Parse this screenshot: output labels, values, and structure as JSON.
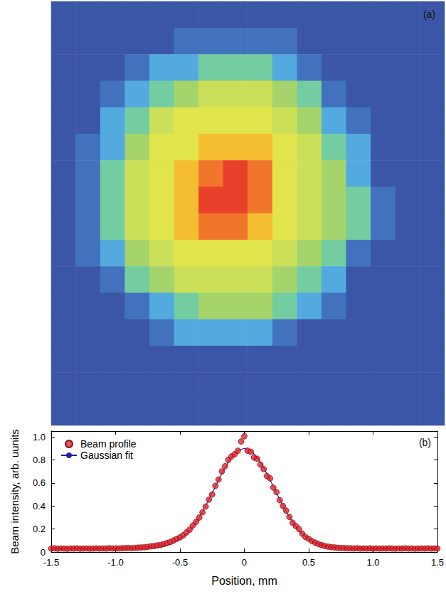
{
  "chart_data": [
    {
      "type": "heatmap",
      "title": "(a)",
      "tick_labels": false,
      "zlim": [
        0,
        1
      ],
      "cells": [
        [
          0,
          0,
          0,
          0,
          0,
          0,
          0,
          0,
          0,
          0,
          0,
          0,
          0,
          0,
          0,
          0
        ],
        [
          0,
          0,
          0,
          0,
          0,
          0.07,
          0.07,
          0.07,
          0.07,
          0.07,
          0,
          0,
          0,
          0,
          0,
          0
        ],
        [
          0,
          0,
          0,
          0.07,
          0.2,
          0.2,
          0.38,
          0.38,
          0.38,
          0.2,
          0.07,
          0,
          0,
          0,
          0,
          0
        ],
        [
          0,
          0,
          0.07,
          0.2,
          0.38,
          0.5,
          0.58,
          0.58,
          0.58,
          0.5,
          0.38,
          0.07,
          0,
          0,
          0,
          0
        ],
        [
          0,
          0,
          0.2,
          0.38,
          0.58,
          0.65,
          0.65,
          0.65,
          0.65,
          0.58,
          0.5,
          0.2,
          0.07,
          0,
          0,
          0
        ],
        [
          0,
          0.07,
          0.2,
          0.5,
          0.65,
          0.65,
          0.8,
          0.8,
          0.8,
          0.65,
          0.58,
          0.38,
          0.2,
          0,
          0,
          0
        ],
        [
          0,
          0.07,
          0.38,
          0.58,
          0.65,
          0.8,
          0.92,
          1.0,
          0.92,
          0.65,
          0.58,
          0.5,
          0.2,
          0,
          0,
          0
        ],
        [
          0,
          0.07,
          0.38,
          0.58,
          0.65,
          0.8,
          1.0,
          1.0,
          0.92,
          0.65,
          0.58,
          0.5,
          0.38,
          0.07,
          0,
          0
        ],
        [
          0,
          0.07,
          0.38,
          0.58,
          0.65,
          0.8,
          0.92,
          0.92,
          0.8,
          0.65,
          0.58,
          0.5,
          0.38,
          0.07,
          0,
          0
        ],
        [
          0,
          0.07,
          0.2,
          0.5,
          0.58,
          0.65,
          0.65,
          0.65,
          0.65,
          0.58,
          0.5,
          0.38,
          0.07,
          0,
          0,
          0
        ],
        [
          0,
          0,
          0.07,
          0.38,
          0.5,
          0.58,
          0.58,
          0.58,
          0.58,
          0.5,
          0.38,
          0.2,
          0,
          0,
          0,
          0
        ],
        [
          0,
          0,
          0,
          0.07,
          0.2,
          0.38,
          0.5,
          0.5,
          0.5,
          0.38,
          0.2,
          0.07,
          0,
          0,
          0,
          0
        ],
        [
          0,
          0,
          0,
          0,
          0.07,
          0.2,
          0.2,
          0.2,
          0.2,
          0.07,
          0,
          0,
          0,
          0,
          0,
          0
        ],
        [
          0,
          0,
          0,
          0,
          0,
          0,
          0,
          0,
          0,
          0,
          0,
          0,
          0,
          0,
          0,
          0
        ],
        [
          0,
          0,
          0,
          0,
          0,
          0,
          0,
          0,
          0,
          0,
          0,
          0,
          0,
          0,
          0,
          0
        ],
        [
          0,
          0,
          0,
          0,
          0,
          0,
          0,
          0,
          0,
          0,
          0,
          0,
          0,
          0,
          0,
          0
        ]
      ]
    },
    {
      "type": "scatter",
      "title": "(b)",
      "xlabel": "Position, mm",
      "ylabel": "Beam intensity, arb. uunits",
      "xlim": [
        -1.5,
        1.5
      ],
      "xticks": [
        -1.5,
        {
          "value": -1.0,
          "label": "-1.0"
        },
        -0.5,
        0,
        0.5,
        {
          "value": 1.0,
          "label": "1.0"
        },
        1.5
      ],
      "ylim": [
        0,
        1.05
      ],
      "yticks": [
        0,
        0.2,
        0.4,
        0.6,
        0.8,
        {
          "value": 1.0,
          "label": "1.0"
        }
      ],
      "grid": false,
      "legend": "upper left",
      "series": [
        {
          "name": "Beam profile",
          "type": "scatter",
          "color": "#e8202a",
          "marker": "circle",
          "x": [
            -1.5,
            -1.475,
            -1.45,
            -1.425,
            -1.4,
            -1.375,
            -1.35,
            -1.325,
            -1.3,
            -1.275,
            -1.25,
            -1.225,
            -1.2,
            -1.175,
            -1.15,
            -1.125,
            -1.1,
            -1.075,
            -1.05,
            -1.025,
            -1.0,
            -0.975,
            -0.95,
            -0.925,
            -0.9,
            -0.875,
            -0.85,
            -0.825,
            -0.8,
            -0.775,
            -0.75,
            -0.725,
            -0.7,
            -0.675,
            -0.65,
            -0.625,
            -0.6,
            -0.575,
            -0.55,
            -0.525,
            -0.5,
            -0.475,
            -0.45,
            -0.425,
            -0.4,
            -0.375,
            -0.35,
            -0.325,
            -0.3,
            -0.275,
            -0.25,
            -0.225,
            -0.2,
            -0.175,
            -0.15,
            -0.125,
            -0.1,
            -0.075,
            -0.05,
            -0.025,
            0,
            0.025,
            0.05,
            0.075,
            0.1,
            0.125,
            0.15,
            0.175,
            0.2,
            0.225,
            0.25,
            0.275,
            0.3,
            0.325,
            0.35,
            0.375,
            0.4,
            0.425,
            0.45,
            0.475,
            0.5,
            0.525,
            0.55,
            0.575,
            0.6,
            0.625,
            0.65,
            0.675,
            0.7,
            0.725,
            0.75,
            0.775,
            0.8,
            0.825,
            0.85,
            0.875,
            0.9,
            0.925,
            0.95,
            0.975,
            1.0,
            1.025,
            1.05,
            1.075,
            1.1,
            1.125,
            1.15,
            1.175,
            1.2,
            1.225,
            1.25,
            1.275,
            1.3,
            1.325,
            1.35,
            1.375,
            1.4,
            1.425,
            1.45,
            1.475,
            1.5
          ],
          "values": [
            0.03,
            0.032,
            0.029,
            0.031,
            0.03,
            0.028,
            0.031,
            0.03,
            0.032,
            0.029,
            0.03,
            0.031,
            0.029,
            0.03,
            0.032,
            0.03,
            0.031,
            0.03,
            0.033,
            0.031,
            0.032,
            0.031,
            0.033,
            0.034,
            0.035,
            0.033,
            0.036,
            0.038,
            0.04,
            0.042,
            0.045,
            0.05,
            0.052,
            0.058,
            0.062,
            0.07,
            0.078,
            0.088,
            0.1,
            0.115,
            0.128,
            0.145,
            0.17,
            0.195,
            0.23,
            0.262,
            0.3,
            0.345,
            0.395,
            0.455,
            0.5,
            0.575,
            0.63,
            0.7,
            0.745,
            0.8,
            0.83,
            0.85,
            0.88,
            0.96,
            1.005,
            0.88,
            0.87,
            0.82,
            0.81,
            0.76,
            0.72,
            0.66,
            0.64,
            0.56,
            0.52,
            0.45,
            0.4,
            0.36,
            0.305,
            0.255,
            0.225,
            0.2,
            0.16,
            0.13,
            0.115,
            0.095,
            0.082,
            0.07,
            0.06,
            0.052,
            0.047,
            0.043,
            0.04,
            0.037,
            0.035,
            0.034,
            0.033,
            0.032,
            0.031,
            0.033,
            0.03,
            0.031,
            0.03,
            0.032,
            0.029,
            0.031,
            0.03,
            0.031,
            0.03,
            0.032,
            0.03,
            0.029,
            0.031,
            0.03,
            0.032,
            0.03,
            0.031,
            0.029,
            0.03,
            0.031,
            0.03,
            0.032,
            0.03,
            0.031,
            0.03
          ]
        },
        {
          "name": "Gaussian fit",
          "type": "line",
          "color": "#1f1fa0",
          "line_style": "solid",
          "x": [
            -1.5,
            -1.0,
            -0.9,
            -0.8,
            -0.75,
            -0.7,
            -0.65,
            -0.6,
            -0.55,
            -0.5,
            -0.45,
            -0.4,
            -0.35,
            -0.3,
            -0.25,
            -0.2,
            -0.15,
            -0.1,
            -0.05,
            0,
            0.05,
            0.1,
            0.15,
            0.2,
            0.25,
            0.3,
            0.35,
            0.4,
            0.45,
            0.5,
            0.55,
            0.6,
            0.65,
            0.7,
            0.75,
            0.8,
            0.9,
            1.0,
            1.5
          ],
          "values": [
            0.03,
            0.03,
            0.03,
            0.032,
            0.034,
            0.038,
            0.046,
            0.059,
            0.08,
            0.112,
            0.158,
            0.222,
            0.303,
            0.401,
            0.512,
            0.626,
            0.733,
            0.822,
            0.88,
            0.9,
            0.88,
            0.822,
            0.733,
            0.626,
            0.512,
            0.401,
            0.303,
            0.222,
            0.158,
            0.112,
            0.08,
            0.059,
            0.046,
            0.038,
            0.034,
            0.032,
            0.03,
            0.03,
            0.03
          ]
        }
      ]
    }
  ]
}
